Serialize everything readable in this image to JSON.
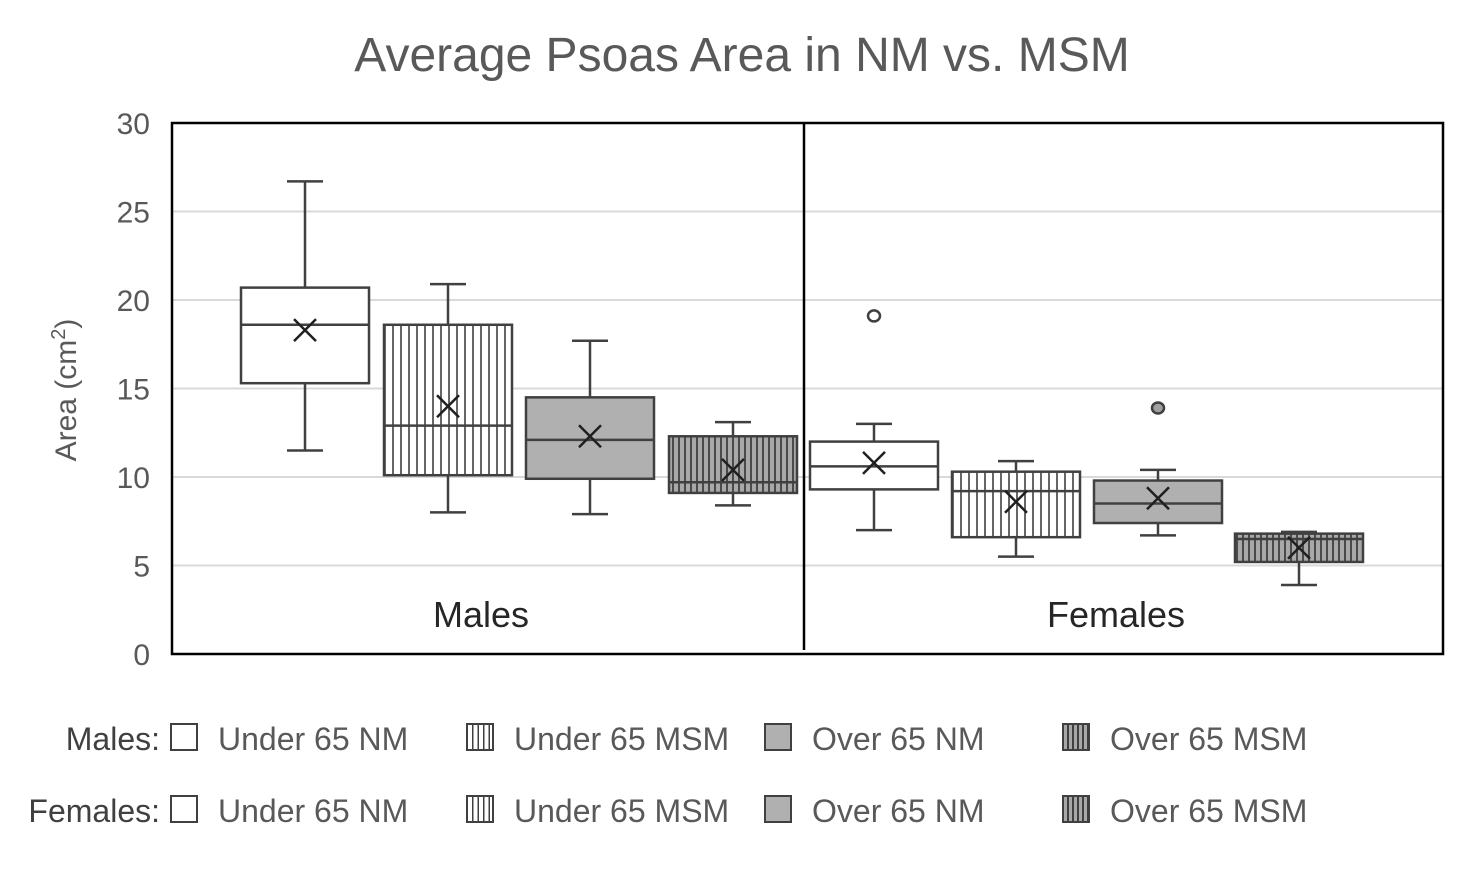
{
  "chart_data": {
    "type": "boxplot",
    "title": "Average Psoas Area in NM vs. MSM",
    "ylabel": "Area (cm²)",
    "ylabel_parts": {
      "main": "Area (cm",
      "sup": "2",
      "close": ")"
    },
    "ylim": [
      0,
      30
    ],
    "yticks": [
      0,
      5,
      10,
      15,
      20,
      25,
      30
    ],
    "grid": true,
    "groups": [
      {
        "label": "Males",
        "boxes": [
          {
            "series": "Under 65 NM",
            "min": 11.5,
            "q1": 15.3,
            "median": 18.6,
            "q3": 20.7,
            "max": 26.7,
            "mean": 18.3,
            "outliers": []
          },
          {
            "series": "Under 65 MSM",
            "min": 8.0,
            "q1": 10.1,
            "median": 12.9,
            "q3": 18.6,
            "max": 20.9,
            "mean": 14.0,
            "outliers": []
          },
          {
            "series": "Over 65 NM",
            "min": 7.9,
            "q1": 9.9,
            "median": 12.1,
            "q3": 14.5,
            "max": 17.7,
            "mean": 12.3,
            "outliers": []
          },
          {
            "series": "Over 65 MSM",
            "min": 8.4,
            "q1": 9.1,
            "median": 9.7,
            "q3": 12.3,
            "max": 13.1,
            "mean": 10.4,
            "outliers": []
          }
        ]
      },
      {
        "label": "Females",
        "boxes": [
          {
            "series": "Under 65 NM",
            "min": 7.0,
            "q1": 9.3,
            "median": 10.6,
            "q3": 12.0,
            "max": 13.0,
            "mean": 10.8,
            "outliers": [
              19.1
            ]
          },
          {
            "series": "Under 65 MSM",
            "min": 5.5,
            "q1": 6.6,
            "median": 9.2,
            "q3": 10.3,
            "max": 10.9,
            "mean": 8.6,
            "outliers": []
          },
          {
            "series": "Over 65 NM",
            "min": 6.7,
            "q1": 7.4,
            "median": 8.5,
            "q3": 9.8,
            "max": 10.4,
            "mean": 8.8,
            "outliers": [
              13.9
            ]
          },
          {
            "series": "Over 65 MSM",
            "min": 3.9,
            "q1": 5.2,
            "median": 6.5,
            "q3": 6.8,
            "max": 6.9,
            "mean": 6.0,
            "outliers": []
          }
        ]
      }
    ],
    "legend": {
      "placement": "bottom",
      "rows": [
        {
          "label": "Males:",
          "items": [
            {
              "text": "Under 65 NM",
              "style": "white"
            },
            {
              "text": "Under 65 MSM",
              "style": "white-vstripe"
            },
            {
              "text": "Over 65 NM",
              "style": "gray"
            },
            {
              "text": "Over 65 MSM",
              "style": "gray-vstripe"
            }
          ]
        },
        {
          "label": "Females:",
          "items": [
            {
              "text": "Under 65 NM",
              "style": "white"
            },
            {
              "text": "Under 65 MSM",
              "style": "white-vstripe"
            },
            {
              "text": "Over 65 NM",
              "style": "gray"
            },
            {
              "text": "Over 65 MSM",
              "style": "gray-vstripe"
            }
          ]
        }
      ]
    },
    "colors": {
      "box_outline": "#404040",
      "white_fill": "#ffffff",
      "gray_fill": "#b0b0b0",
      "gridline": "#d9d9d9",
      "axis_text": "#595959"
    }
  }
}
